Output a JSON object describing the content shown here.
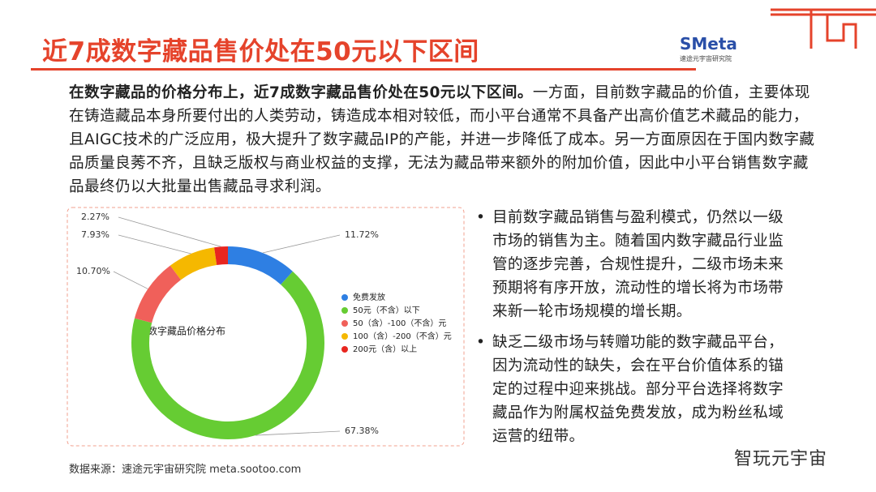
{
  "header": {
    "title": "近7成数字藏品售价处在50元以下区间",
    "logo": "SMeta",
    "logo_sub": "速途元宇宙研究院"
  },
  "paragraph": {
    "lead": "在数字藏品的价格分布上，近7成数字藏品售价处在50元以下区间。",
    "body": "一方面，目前数字藏品的价值，主要体现在铸造藏品本身所要付出的人类劳动，铸造成本相对较低，而小平台通常不具备产出高价值艺术藏品的能力，且AIGC技术的广泛应用，极大提升了数字藏品IP的产能，并进一步降低了成本。另一方面原因在于国内数字藏品质量良莠不齐，且缺乏版权与商业权益的支撑，无法为藏品带来额外的附加价值，因此中小平台销售数字藏品最终仍以大批量出售藏品寻求利润。"
  },
  "bullets": [
    "目前数字藏品销售与盈利模式，仍然以一级市场的销售为主。随着国内数字藏品行业监管的逐步完善，合规性提升，二级市场未来预期将有序开放，流动性的增长将为市场带来新一轮市场规模的增长期。",
    "缺乏二级市场与转赠功能的数字藏品平台，因为流动性的缺失，会在平台价值体系的锚定的过程中迎来挑战。部分平台选择将数字藏品作为附属权益免费发放，成为粉丝私域运营的纽带。"
  ],
  "source": "数据来源：速途元宇宙研究院 meta.sootoo.com",
  "watermark": "智玩元宇宙",
  "chart_data": {
    "type": "donut",
    "title": "数字藏品价格分布",
    "categories": [
      "免费发放",
      "50元（不含）以下",
      "50（含）-100（不含）元",
      "100（含）-200（不含）元",
      "200元（含）以上"
    ],
    "values": [
      11.72,
      67.38,
      10.7,
      7.93,
      2.27
    ],
    "value_labels": [
      "11.72%",
      "67.38%",
      "10.70%",
      "7.93%",
      "2.27%"
    ],
    "colors": [
      "#2e7fe3",
      "#66cc33",
      "#f0605a",
      "#f5b800",
      "#e8261f"
    ]
  }
}
